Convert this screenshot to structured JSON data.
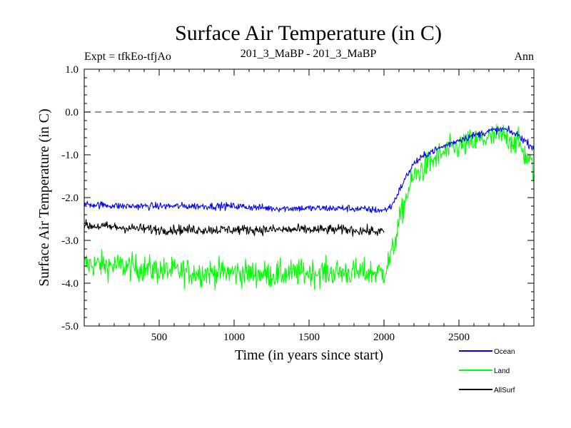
{
  "chart_data": {
    "type": "line",
    "title": "Surface Air Temperature (in C)",
    "left_label": "Expt = tfkEo-tfjAo",
    "center_label": "201_3_MaBP - 201_3_MaBP",
    "right_label": "Ann",
    "xlabel": "Time (in years since start)",
    "ylabel": "Surface Air Temperature (in C)",
    "xlim": [
      0,
      3000
    ],
    "ylim": [
      -5.0,
      1.0
    ],
    "x_ticks": [
      500,
      1000,
      1500,
      2000,
      2500
    ],
    "x_tick_labels": [
      "500",
      "1000",
      "1500",
      "2000",
      "2500"
    ],
    "y_ticks": [
      1.0,
      0.0,
      -1.0,
      -2.0,
      -3.0,
      -4.0,
      -5.0
    ],
    "y_tick_labels": [
      "1.0",
      "0.0",
      "-1.0",
      "-2.0",
      "-3.0",
      "-4.0",
      "-5.0"
    ],
    "reference_line": {
      "y": 0.0,
      "style": "dashed"
    },
    "grid": false,
    "legend_position": "bottom-right",
    "x": [
      0,
      250,
      500,
      750,
      1000,
      1250,
      1500,
      1750,
      2000,
      2050,
      2100,
      2150,
      2200,
      2300,
      2400,
      2500,
      2600,
      2700,
      2800,
      2900,
      3000
    ],
    "series": [
      {
        "name": "Ocean",
        "color": "#0000ff",
        "noise": 0.08,
        "values": [
          -2.15,
          -2.2,
          -2.2,
          -2.2,
          -2.2,
          -2.25,
          -2.25,
          -2.25,
          -2.3,
          -2.2,
          -1.85,
          -1.5,
          -1.2,
          -0.95,
          -0.8,
          -0.65,
          -0.55,
          -0.45,
          -0.4,
          -0.55,
          -0.85
        ]
      },
      {
        "name": "Land",
        "color": "#00ff00",
        "noise": 0.3,
        "values": [
          -3.55,
          -3.6,
          -3.7,
          -3.75,
          -3.75,
          -3.8,
          -3.75,
          -3.75,
          -3.75,
          -3.35,
          -2.6,
          -1.95,
          -1.5,
          -1.2,
          -0.95,
          -0.8,
          -0.7,
          -0.6,
          -0.55,
          -0.75,
          -1.35
        ]
      },
      {
        "name": "AllSurf",
        "color": "#000000",
        "noise": 0.11,
        "values": [
          -2.65,
          -2.7,
          -2.75,
          -2.75,
          -2.75,
          -2.75,
          -2.75,
          -2.75,
          -2.8,
          null,
          null,
          null,
          null,
          null,
          null,
          null,
          null,
          null,
          null,
          null,
          null
        ]
      }
    ]
  }
}
